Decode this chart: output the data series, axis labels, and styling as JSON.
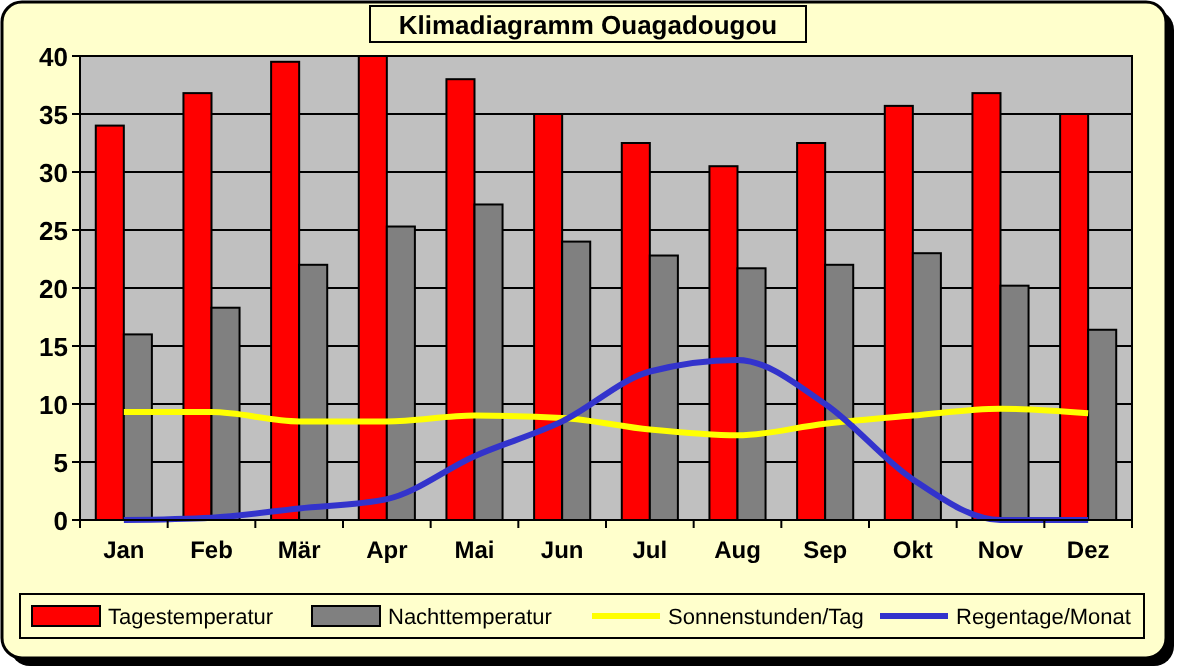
{
  "chart_data": {
    "type": "bar",
    "title": "Klimadiagramm Ouagadougou",
    "categories": [
      "Jan",
      "Feb",
      "Mär",
      "Apr",
      "Mai",
      "Jun",
      "Jul",
      "Aug",
      "Sep",
      "Okt",
      "Nov",
      "Dez"
    ],
    "series": [
      {
        "name": "Tagestemperatur",
        "color": "#ff0000",
        "values": [
          34,
          36.8,
          39.5,
          40,
          38,
          35,
          32.5,
          30.5,
          32.5,
          35.7,
          36.8,
          35
        ]
      },
      {
        "name": "Nachttemperatur",
        "color": "#808080",
        "values": [
          16,
          18.3,
          22,
          25.3,
          27.2,
          24,
          22.8,
          21.7,
          22,
          23,
          20.2,
          16.4
        ]
      },
      {
        "name": "Sonnenstunden/Tag",
        "type": "line",
        "color": "#ffff00",
        "values": [
          9.3,
          9.3,
          8.5,
          8.5,
          9,
          8.8,
          7.8,
          7.3,
          8.3,
          9,
          9.6,
          9.2
        ]
      },
      {
        "name": "Regentage/Monat",
        "type": "line",
        "color": "#3333cc",
        "values": [
          0,
          0.2,
          1,
          1.8,
          5.5,
          8.5,
          12.8,
          13.8,
          10,
          3.5,
          0,
          0
        ]
      }
    ],
    "ylim": [
      0,
      40
    ],
    "yticks": [
      0,
      5,
      10,
      15,
      20,
      25,
      30,
      35,
      40
    ],
    "grid": "y",
    "legend": "bottom",
    "marker": "none"
  }
}
